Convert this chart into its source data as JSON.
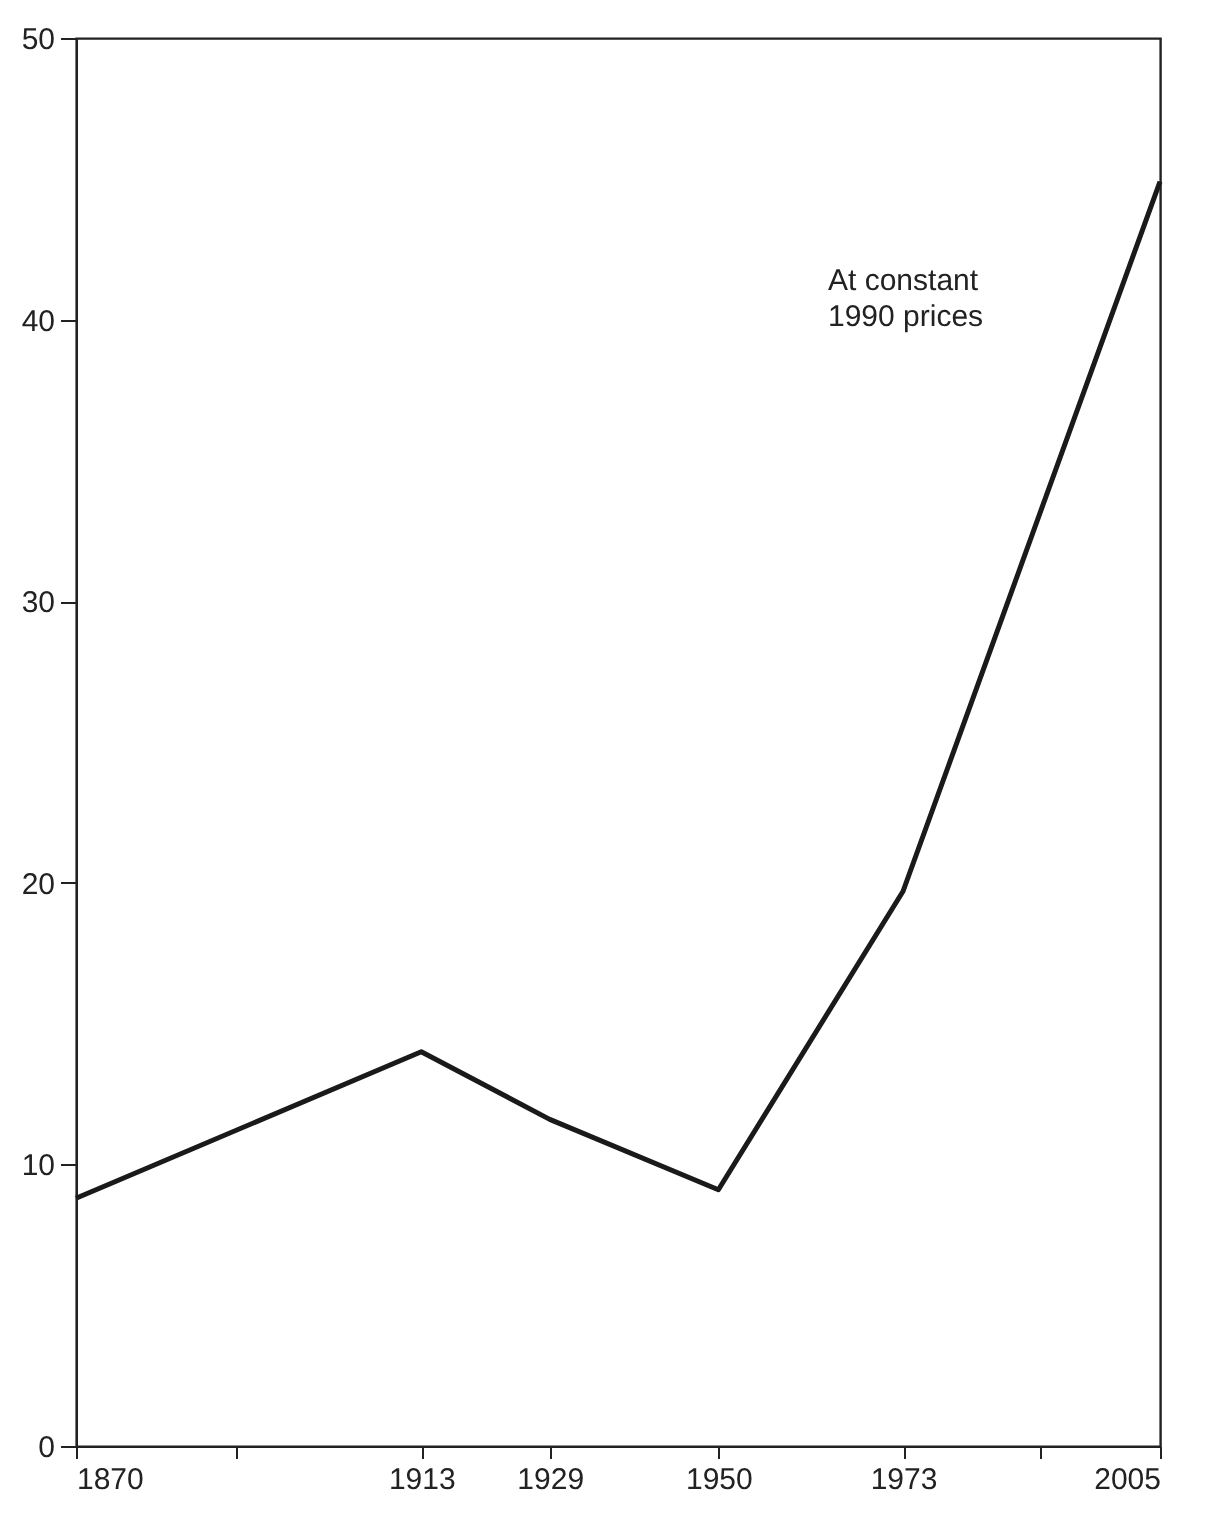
{
  "chart_data": {
    "type": "line",
    "x": [
      1870,
      1913,
      1929,
      1950,
      1973,
      2005
    ],
    "series": [
      {
        "color": "#1a1a1a",
        "values": [
          8.8,
          14.0,
          11.6,
          9.1,
          19.7,
          44.9
        ]
      }
    ],
    "xlim": [
      1870,
      2005
    ],
    "xticks": [
      1870,
      {
        "value": 1890,
        "label": null
      },
      1913,
      1929,
      1950,
      1973,
      {
        "value": 1990,
        "label": null
      },
      2005
    ],
    "ylim": [
      0,
      50
    ],
    "yticks": [
      0,
      10,
      20,
      30,
      40,
      50
    ],
    "annotations": [
      "At  constant\n1990 prices"
    ],
    "grid": false,
    "marker": "none",
    "line_style": "solid"
  }
}
